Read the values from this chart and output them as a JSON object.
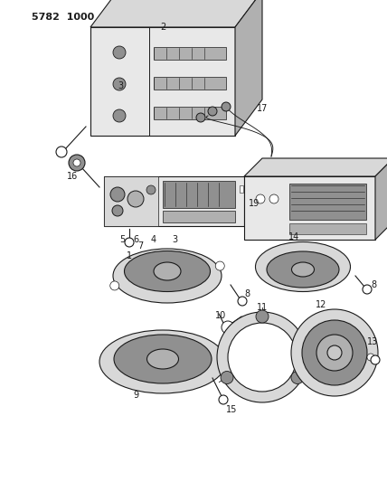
{
  "title": "5782 1000",
  "bg": "#ffffff",
  "lc": "#1a1a1a",
  "gray1": "#c8c8c8",
  "gray2": "#b0b0b0",
  "gray3": "#909090",
  "gray4": "#d8d8d8",
  "gray5": "#e8e8e8",
  "figsize": [
    4.28,
    5.33
  ],
  "dpi": 100
}
